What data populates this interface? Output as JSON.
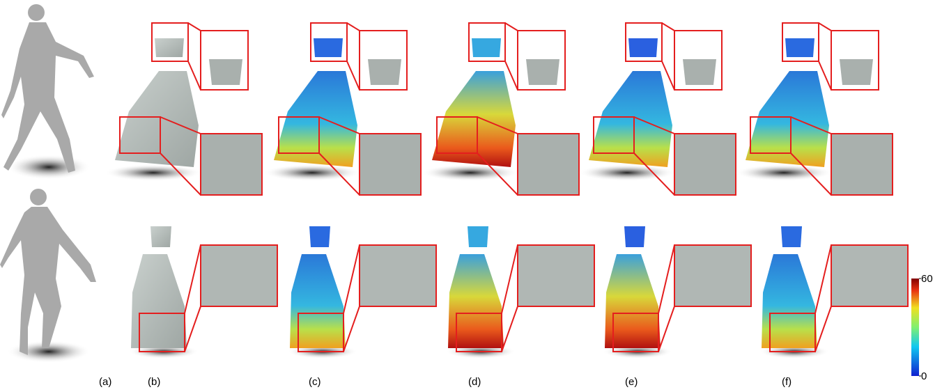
{
  "panel_labels": [
    "(a)",
    "(b)",
    "(c)",
    "(d)",
    "(e)",
    "(f)"
  ],
  "colorbar": {
    "lim": [
      0,
      60
    ],
    "ticks": [
      60,
      0
    ]
  }
}
